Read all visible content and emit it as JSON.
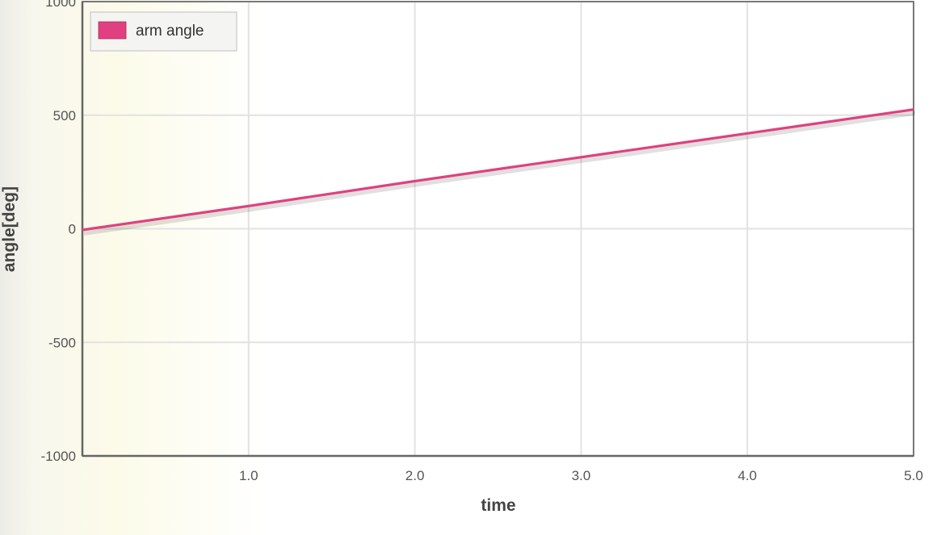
{
  "chart_data": {
    "type": "line",
    "xlabel": "time",
    "ylabel": "angle[deg]",
    "xlim": [
      0,
      5.0
    ],
    "ylim": [
      -1000,
      1000
    ],
    "x_ticks": [
      "1.0",
      "2.0",
      "3.0",
      "4.0",
      "5.0"
    ],
    "y_ticks": [
      "1000",
      "500",
      "0",
      "-500",
      "-1000"
    ],
    "grid": true,
    "legend_position": "top-left",
    "series": [
      {
        "name": "arm angle",
        "color": "#e0407f",
        "x": [
          0,
          1.0,
          2.0,
          3.0,
          4.0,
          5.0
        ],
        "y": [
          -5,
          100,
          210,
          315,
          420,
          525
        ]
      }
    ]
  }
}
